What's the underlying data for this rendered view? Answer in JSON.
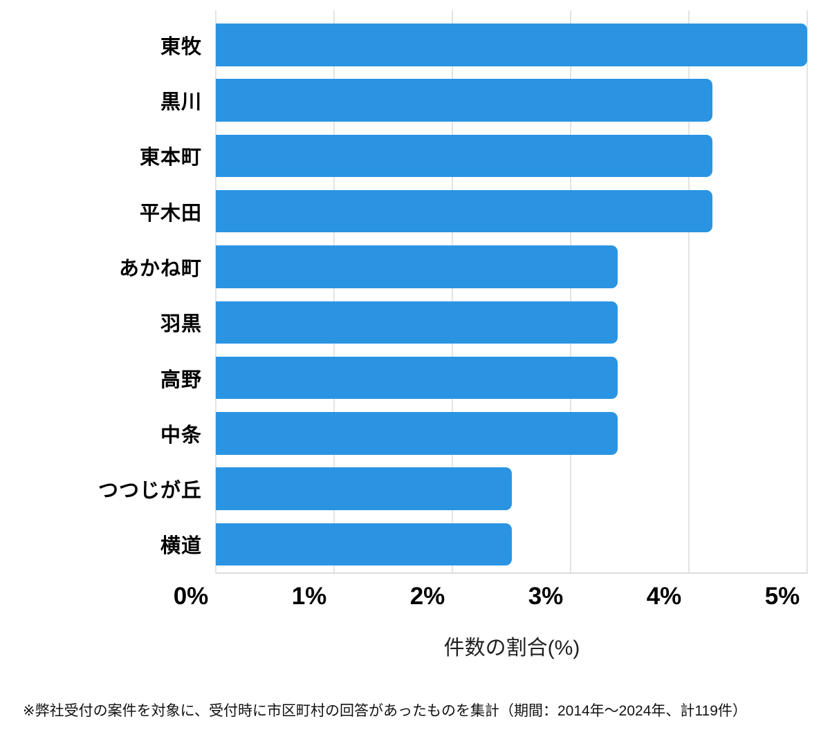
{
  "chart_data": {
    "type": "bar",
    "orientation": "horizontal",
    "title": "",
    "categories": [
      "東牧",
      "黒川",
      "東本町",
      "平木田",
      "あかね町",
      "羽黒",
      "高野",
      "中条",
      "つつじが丘",
      "横道"
    ],
    "values": [
      5.0,
      4.2,
      4.2,
      4.2,
      3.4,
      3.4,
      3.4,
      3.4,
      2.5,
      2.5
    ],
    "xlabel": "件数の割合(%)",
    "ylabel": "",
    "xlim": [
      0,
      5
    ],
    "x_ticks": [
      "0%",
      "1%",
      "2%",
      "3%",
      "4%",
      "5%"
    ],
    "x_tick_values": [
      0,
      1,
      2,
      3,
      4,
      5
    ],
    "grid": true,
    "legend": "none",
    "bar_color": "#2a94e3",
    "gridline_color": "#e3e3e3",
    "text_color": "#000000"
  },
  "footnote": "※弊社受付の案件を対象に、受付時に市区町村の回答があったものを集計（期間：2014年～2024年、計119件）"
}
